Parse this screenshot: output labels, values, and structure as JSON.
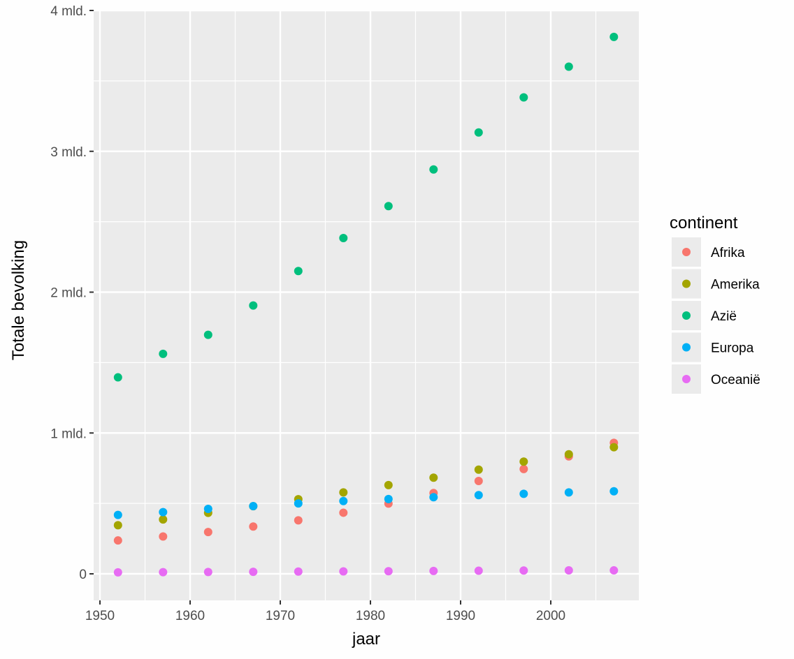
{
  "chart_data": {
    "type": "scatter",
    "title": "",
    "xlabel": "jaar",
    "ylabel": "Totale bevolking",
    "xlim": [
      1949.3,
      2009.7
    ],
    "ylim": [
      -0.19,
      4.0
    ],
    "x_ticks": [
      1950,
      1960,
      1970,
      1980,
      1990,
      2000
    ],
    "x_tick_labels": [
      "1950",
      "1960",
      "1970",
      "1980",
      "1990",
      "2000"
    ],
    "y_ticks": [
      0,
      1,
      2,
      3,
      4
    ],
    "y_tick_labels": [
      "0",
      "1 mld.",
      "2 mld.",
      "3 mld.",
      "4 mld."
    ],
    "y_unit": "billions (mld.)",
    "grid": true,
    "legend": {
      "title": "continent",
      "position": "right"
    },
    "x": [
      1952,
      1957,
      1962,
      1967,
      1972,
      1977,
      1982,
      1987,
      1992,
      1997,
      2002,
      2007
    ],
    "series": [
      {
        "name": "Afrika",
        "color": "#F8766D",
        "values": [
          0.237,
          0.265,
          0.297,
          0.336,
          0.38,
          0.434,
          0.499,
          0.574,
          0.659,
          0.744,
          0.834,
          0.93
        ]
      },
      {
        "name": "Amerika",
        "color": "#A3A500",
        "values": [
          0.345,
          0.386,
          0.433,
          0.48,
          0.53,
          0.578,
          0.63,
          0.683,
          0.74,
          0.797,
          0.849,
          0.899
        ]
      },
      {
        "name": "Azië",
        "color": "#00BF7D",
        "values": [
          1.395,
          1.562,
          1.697,
          1.905,
          2.15,
          2.384,
          2.611,
          2.871,
          3.134,
          3.383,
          3.601,
          3.812
        ]
      },
      {
        "name": "Europa",
        "color": "#00B0F6",
        "values": [
          0.418,
          0.438,
          0.461,
          0.481,
          0.5,
          0.517,
          0.531,
          0.544,
          0.559,
          0.568,
          0.578,
          0.586
        ]
      },
      {
        "name": "Oceanië",
        "color": "#E76BF3",
        "values": [
          0.0107,
          0.0119,
          0.0131,
          0.0143,
          0.0162,
          0.0176,
          0.0188,
          0.0203,
          0.022,
          0.0234,
          0.0249,
          0.0245
        ]
      }
    ]
  },
  "colors": {
    "panel_bg": "#EBEBEB",
    "grid": "#FFFFFF",
    "tick": "#333333"
  }
}
